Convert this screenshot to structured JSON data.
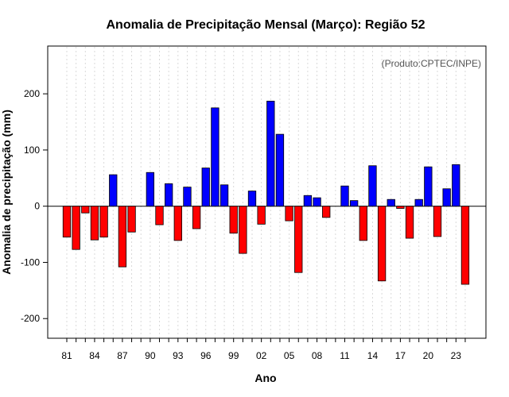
{
  "chart_data": {
    "type": "bar",
    "title": "Anomalia de Precipitação Mensal (Março): Região 52",
    "xlabel": "Ano",
    "ylabel": "Anomalia de precipitação (mm)",
    "annotation": "(Produto:CPTEC/INPE)",
    "ylim": [
      -235,
      285
    ],
    "yticks": [
      -200,
      -100,
      0,
      100,
      200
    ],
    "grid": "vertical dotted",
    "positive_color": "#0000ff",
    "negative_color": "#ff0000",
    "xtick_labels": [
      "81",
      "84",
      "87",
      "90",
      "93",
      "96",
      "99",
      "02",
      "05",
      "08",
      "11",
      "14",
      "17",
      "20",
      "23"
    ],
    "categories": [
      "1981",
      "1982",
      "1983",
      "1984",
      "1985",
      "1986",
      "1987",
      "1988",
      "1989",
      "1990",
      "1991",
      "1992",
      "1993",
      "1994",
      "1995",
      "1996",
      "1997",
      "1998",
      "1999",
      "2000",
      "2001",
      "2002",
      "2003",
      "2004",
      "2005",
      "2006",
      "2007",
      "2008",
      "2009",
      "2010",
      "2011",
      "2012",
      "2013",
      "2014",
      "2015",
      "2016",
      "2017",
      "2018",
      "2019",
      "2020",
      "2021",
      "2022",
      "2023",
      "2024"
    ],
    "values": [
      -55,
      -77,
      -12,
      -60,
      -55,
      56,
      -108,
      -46,
      0,
      60,
      -33,
      40,
      -61,
      34,
      -40,
      68,
      175,
      38,
      -48,
      -84,
      27,
      -32,
      187,
      128,
      -26,
      -118,
      19,
      15,
      -20,
      0,
      36,
      10,
      -61,
      72,
      -133,
      12,
      -4,
      -57,
      12,
      70,
      -54,
      31,
      74,
      -139
    ]
  }
}
